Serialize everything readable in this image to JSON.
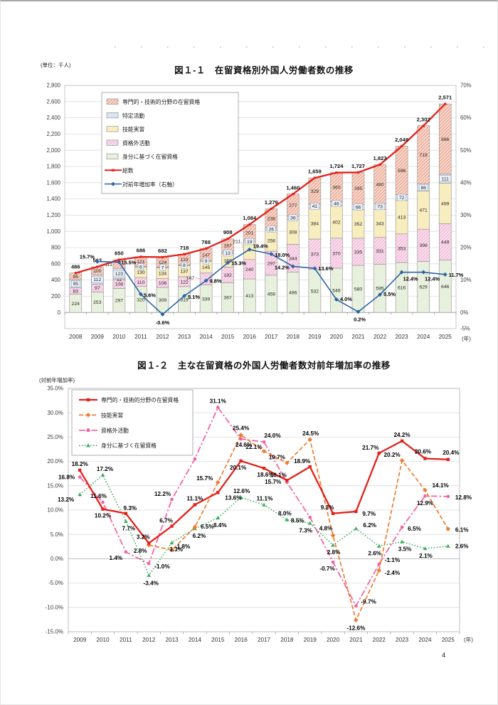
{
  "page": {
    "unit_label": "(単位：千人)",
    "fig1_title": "図１-１　在留資格別外国人労働者数の推移",
    "fig2_title": "図１-２　主な在留資格の外国人労働者数対前年増加率の推移",
    "fig2_axis_label": "(対前年増加率)",
    "year_suffix": "(年)",
    "page_number": "4"
  },
  "chart_data": [
    {
      "type": "bar",
      "subtype": "stacked-bars-with-total-and-growth-lines",
      "title": "図１-１　在留資格別外国人労働者数の推移",
      "unit_label": "(単位：千人)",
      "categories": [
        "2008",
        "2009",
        "2010",
        "2011",
        "2012",
        "2013",
        "2014",
        "2015",
        "2016",
        "2017",
        "2018",
        "2019",
        "2020",
        "2021",
        "2022",
        "2023",
        "2024",
        "2025"
      ],
      "ylim": [
        -200,
        2800
      ],
      "y_ticks": [
        "2,800",
        "2,600",
        "2,400",
        "2,200",
        "2,000",
        "1,800",
        "1,600",
        "1,400",
        "1,200",
        "1,000",
        "800",
        "600",
        "400",
        "200",
        "0"
      ],
      "y2lim": [
        -5,
        70
      ],
      "y2_ticks": [
        "70%",
        "60%",
        "50%",
        "40%",
        "30%",
        "20%",
        "10%",
        "0%",
        "-5%"
      ],
      "grid": true,
      "legend_position": "inside-top-left",
      "series": [
        {
          "name": "身分に基づく在留資格",
          "style": "green-check",
          "values": [
            224,
            253,
            297,
            320,
            309,
            319,
            339,
            367,
            413,
            459,
            496,
            532,
            546,
            580,
            595,
            616,
            629,
            646
          ]
        },
        {
          "name": "資格外活動",
          "style": "pink-hatch",
          "values": [
            83,
            97,
            108,
            110,
            108,
            122,
            147,
            192,
            240,
            297,
            344,
            373,
            370,
            335,
            331,
            353,
            398,
            449
          ]
        },
        {
          "name": "技能実習",
          "style": "yellow-solid",
          "values": [
            0,
            0,
            11,
            130,
            134,
            137,
            145,
            168,
            211,
            258,
            308,
            384,
            402,
            352,
            343,
            413,
            471,
            499
          ]
        },
        {
          "name": "特定活動",
          "style": "blue-solid",
          "values": [
            95,
            112,
            123,
            6,
            7,
            8,
            9,
            13,
            19,
            26,
            36,
            41,
            46,
            66,
            73,
            72,
            86,
            111
          ]
        },
        {
          "name": "専門的・技術的分野の在留資格",
          "style": "red-hatch",
          "values": [
            85,
            100,
            111,
            121,
            124,
            133,
            147,
            167,
            201,
            238,
            277,
            329,
            360,
            395,
            480,
            596,
            719,
            866
          ]
        }
      ],
      "total_line": {
        "name": "総数",
        "color": "#e3211a",
        "values": [
          486,
          563,
          650,
          686,
          682,
          718,
          788,
          908,
          1084,
          1279,
          1460,
          1659,
          1724,
          1727,
          1823,
          2049,
          2302,
          2571
        ],
        "labels": [
          "486",
          "563",
          "650",
          "686",
          "682",
          "718",
          "788",
          "908",
          "1,084",
          "1,279",
          "1,460",
          "1,659",
          "1,724",
          "1,727",
          "1,823",
          "2,049",
          "2,302",
          "2,571"
        ]
      },
      "growth_line": {
        "name": "対前年増加率（右軸）",
        "color": "#2d64a3",
        "axis": "right",
        "values": [
          null,
          15.7,
          15.5,
          5.6,
          -0.6,
          5.1,
          9.8,
          15.3,
          19.4,
          18.0,
          14.2,
          13.6,
          4.0,
          0.2,
          5.5,
          12.4,
          12.4,
          11.7
        ],
        "labels": [
          null,
          "15.7%",
          "15.5%",
          "5.6%",
          "-0.6%",
          "5.1%",
          "9.8%",
          "15.3%",
          "19.4%",
          "18.0%",
          "14.2%",
          "13.6%",
          "4.0%",
          "0.2%",
          "5.5%",
          "12.4%",
          "12.4%",
          "11.7%"
        ]
      }
    },
    {
      "type": "line",
      "title": "図１-２　主な在留資格の外国人労働者数対前年増加率の推移",
      "ylabel": "(対前年増加率)",
      "categories": [
        "2009",
        "2010",
        "2011",
        "2012",
        "2013",
        "2014",
        "2015",
        "2016",
        "2017",
        "2018",
        "2019",
        "2020",
        "2021",
        "2022",
        "2023",
        "2024",
        "2025"
      ],
      "ylim": [
        -15,
        35
      ],
      "y_ticks": [
        "35.0%",
        "30.0%",
        "25.0%",
        "20.0%",
        "15.0%",
        "10.0%",
        "5.0%",
        "0.0%",
        "-5.0%",
        "-10.0%",
        "-15.0%"
      ],
      "grid": true,
      "legend_position": "inside-top-left",
      "series": [
        {
          "name": "専門的・技術的分野の在留資格",
          "color": "#e3211a",
          "line": "solid",
          "marker": "square",
          "values": [
            18.2,
            10.2,
            9.3,
            3.2,
            6.7,
            11.1,
            13.6,
            20.1,
            18.6,
            16.1,
            18.9,
            9.3,
            9.7,
            21.7,
            24.2,
            20.6,
            20.4
          ]
        },
        {
          "name": "技能実習",
          "color": "#ed7d31",
          "line": "dashed",
          "marker": "diamond",
          "values": [
            null,
            null,
            null,
            2.8,
            1.8,
            6.5,
            15.7,
            25.4,
            22.1,
            19.7,
            24.5,
            4.8,
            -12.6,
            -2.4,
            20.2,
            14.1,
            6.1
          ]
        },
        {
          "name": "資格外活動",
          "color": "#f45fa2",
          "line": "dash-dot",
          "marker": "circle",
          "values": [
            16.8,
            11.6,
            1.4,
            -1.0,
            12.2,
            20.5,
            31.1,
            24.6,
            24.0,
            15.7,
            8.5,
            -0.7,
            -9.7,
            -1.1,
            6.5,
            12.9,
            12.8
          ]
        },
        {
          "name": "身分に基づく在留資格",
          "color": "#3fae5f",
          "line": "dotted",
          "marker": "triangle",
          "values": [
            13.2,
            17.2,
            7.7,
            -3.4,
            3.3,
            6.2,
            8.4,
            12.6,
            11.1,
            8.0,
            7.3,
            2.8,
            6.2,
            2.6,
            3.5,
            2.1,
            2.6
          ]
        }
      ]
    }
  ]
}
